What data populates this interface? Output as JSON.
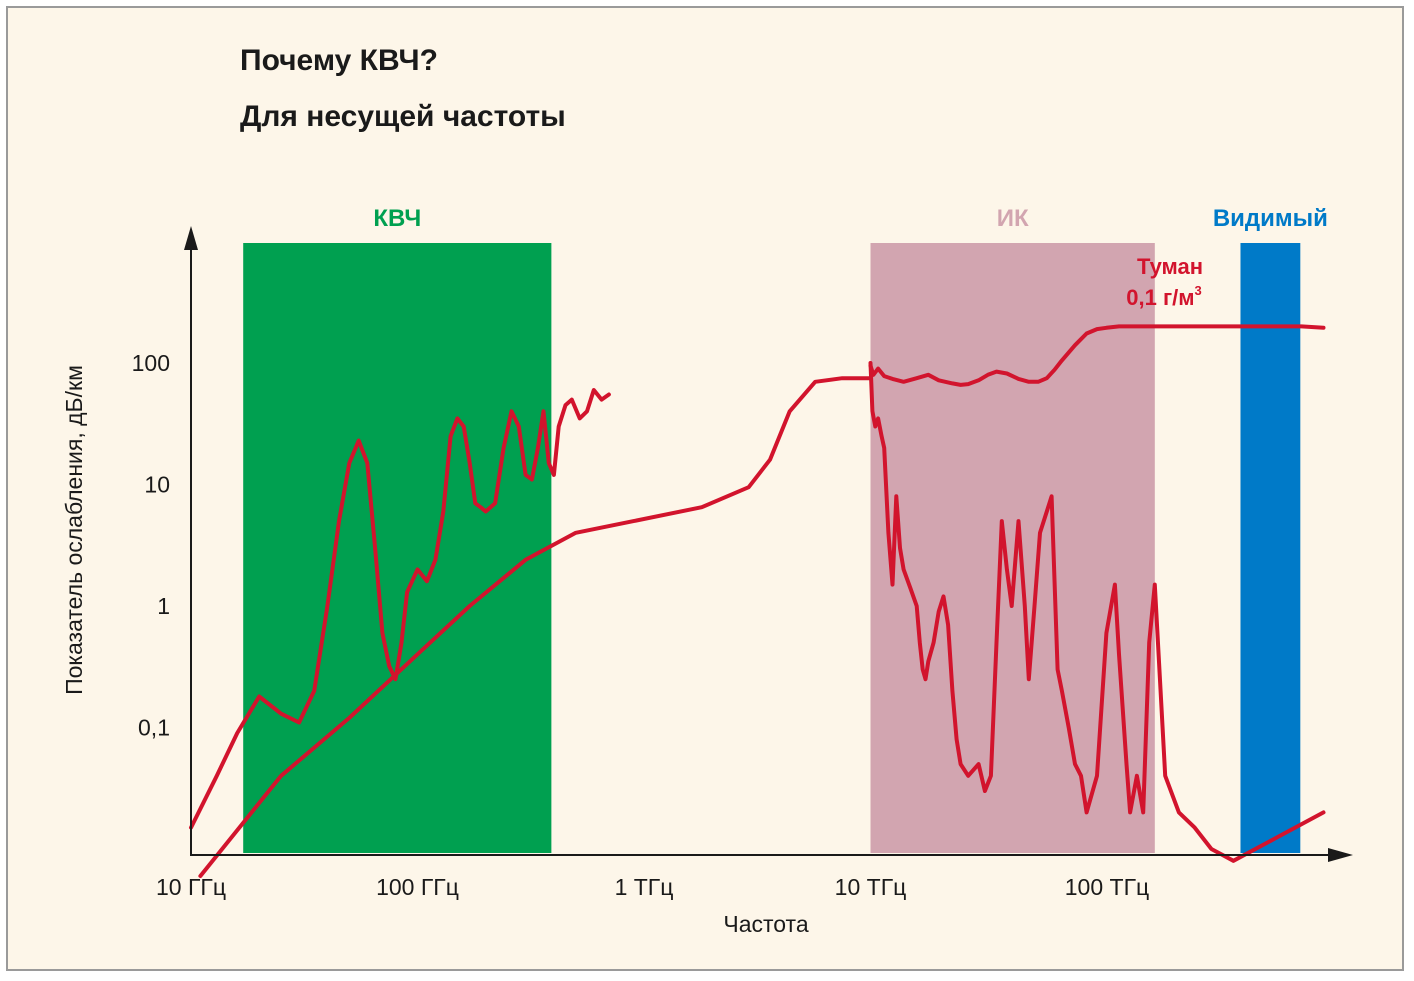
{
  "chart_data": {
    "type": "line",
    "title": "Почему КВЧ?",
    "subtitle": "Для несущей частоты",
    "xlabel": "Частота",
    "ylabel": "Показатель ослабления, дБ/км",
    "x_scale": "log",
    "y_scale": "log",
    "x_ticks": [
      "10 ГГц",
      "100 ГГц",
      "1 ТГц",
      "10 ТГц",
      "100 ТГц"
    ],
    "y_ticks": [
      "0,1",
      "1",
      "10",
      "100"
    ],
    "bands": [
      {
        "label": "КВЧ",
        "from_ghz": 17,
        "to_ghz": 390,
        "color": "#00a050"
      },
      {
        "label": "ИК",
        "from_ghz": 10000,
        "to_ghz": 180000,
        "color": "#d2a5b0"
      },
      {
        "label": "Видимый",
        "from_ghz": 430000,
        "to_ghz": 790000,
        "color": "#007ac8"
      }
    ],
    "annotation": {
      "line1": "Туман",
      "line2": "0,1 г/м",
      "sup": "3"
    },
    "line_color": "#d2142d",
    "series": [
      {
        "x_ghz": [
          10,
          13,
          16,
          20,
          25,
          30,
          35,
          40,
          45,
          50,
          55,
          60,
          65,
          70,
          75,
          80,
          85,
          90,
          100,
          110,
          120,
          130,
          140,
          150,
          160,
          170,
          180,
          190,
          200,
          220,
          240,
          260,
          280,
          300,
          320,
          340,
          360,
          380,
          400,
          420,
          450,
          480,
          520,
          560,
          600,
          650,
          700
        ],
        "y": [
          0.015,
          0.04,
          0.09,
          0.18,
          0.13,
          0.11,
          0.2,
          1.0,
          5.0,
          15.0,
          23.0,
          15.0,
          3.0,
          0.6,
          0.32,
          0.25,
          0.5,
          1.3,
          2.0,
          1.6,
          2.4,
          6.0,
          25.0,
          35.0,
          30.0,
          15.0,
          7.0,
          6.5,
          6.0,
          7.0,
          20.0,
          40.0,
          30.0,
          12.0,
          11.0,
          20.0,
          40.0,
          15.0,
          12.0,
          30.0,
          45.0,
          50.0,
          35.0,
          40.0,
          60.0,
          50.0,
          55.0
        ]
      },
      {
        "x_ghz": [
          10000,
          10300,
          10800,
          11500,
          12500,
          14000,
          16000,
          18000,
          20000,
          23000,
          25000,
          27000,
          30000,
          33000,
          36000,
          40000,
          45000,
          50000,
          55000,
          60000,
          65000,
          70000,
          80000,
          90000,
          100000,
          110000,
          125000,
          150000,
          200000,
          300000,
          500000,
          800000,
          1000000
        ],
        "y": [
          95,
          80,
          90,
          78,
          74,
          70,
          75,
          80,
          72,
          68,
          66,
          67,
          72,
          80,
          85,
          82,
          74,
          70,
          70,
          75,
          88,
          105,
          140,
          175,
          190,
          195,
          200,
          200,
          200,
          200,
          200,
          200,
          195
        ]
      },
      {
        "x_ghz": [
          11,
          25,
          50,
          100,
          170,
          300,
          500,
          900,
          1800,
          2900,
          3600,
          4400,
          5700,
          7500,
          10000
        ],
        "y": [
          0.006,
          0.04,
          0.12,
          0.4,
          1.0,
          2.4,
          4.0,
          5.0,
          6.5,
          9.5,
          16.0,
          40.0,
          70.0,
          75.0,
          75.0
        ]
      },
      {
        "x_ghz": [
          10000,
          10200,
          10500,
          10800,
          11200,
          11500,
          12000,
          12500,
          13000,
          13500,
          14000,
          15000,
          16000,
          16500,
          17000,
          17500,
          18000,
          19000,
          20000,
          21000,
          22000,
          23000,
          24000,
          25000,
          27000,
          30000,
          32000,
          34000,
          36000,
          38000,
          40000,
          42000,
          45000,
          48000,
          50000,
          53000,
          56000,
          60000,
          63000,
          67000,
          70000,
          75000,
          80000,
          85000,
          90000,
          100000,
          110000,
          120000,
          125000,
          135000,
          140000,
          150000,
          160000,
          170000,
          180000,
          200000,
          230000,
          270000,
          320000,
          400000,
          600000,
          1000000
        ],
        "y": [
          100,
          40,
          30,
          35,
          25,
          20,
          4.0,
          1.5,
          8.0,
          3.0,
          2.0,
          1.4,
          1.0,
          0.5,
          0.3,
          0.25,
          0.35,
          0.5,
          0.9,
          1.2,
          0.7,
          0.2,
          0.08,
          0.05,
          0.04,
          0.05,
          0.03,
          0.04,
          0.5,
          5.0,
          2.0,
          1.0,
          5.0,
          1.0,
          0.25,
          1.0,
          4.0,
          6.0,
          8.0,
          0.3,
          0.2,
          0.1,
          0.05,
          0.04,
          0.02,
          0.04,
          0.6,
          1.5,
          0.4,
          0.05,
          0.02,
          0.04,
          0.02,
          0.5,
          1.5,
          0.04,
          0.02,
          0.015,
          0.01,
          0.008,
          0.012,
          0.02
        ]
      }
    ]
  }
}
